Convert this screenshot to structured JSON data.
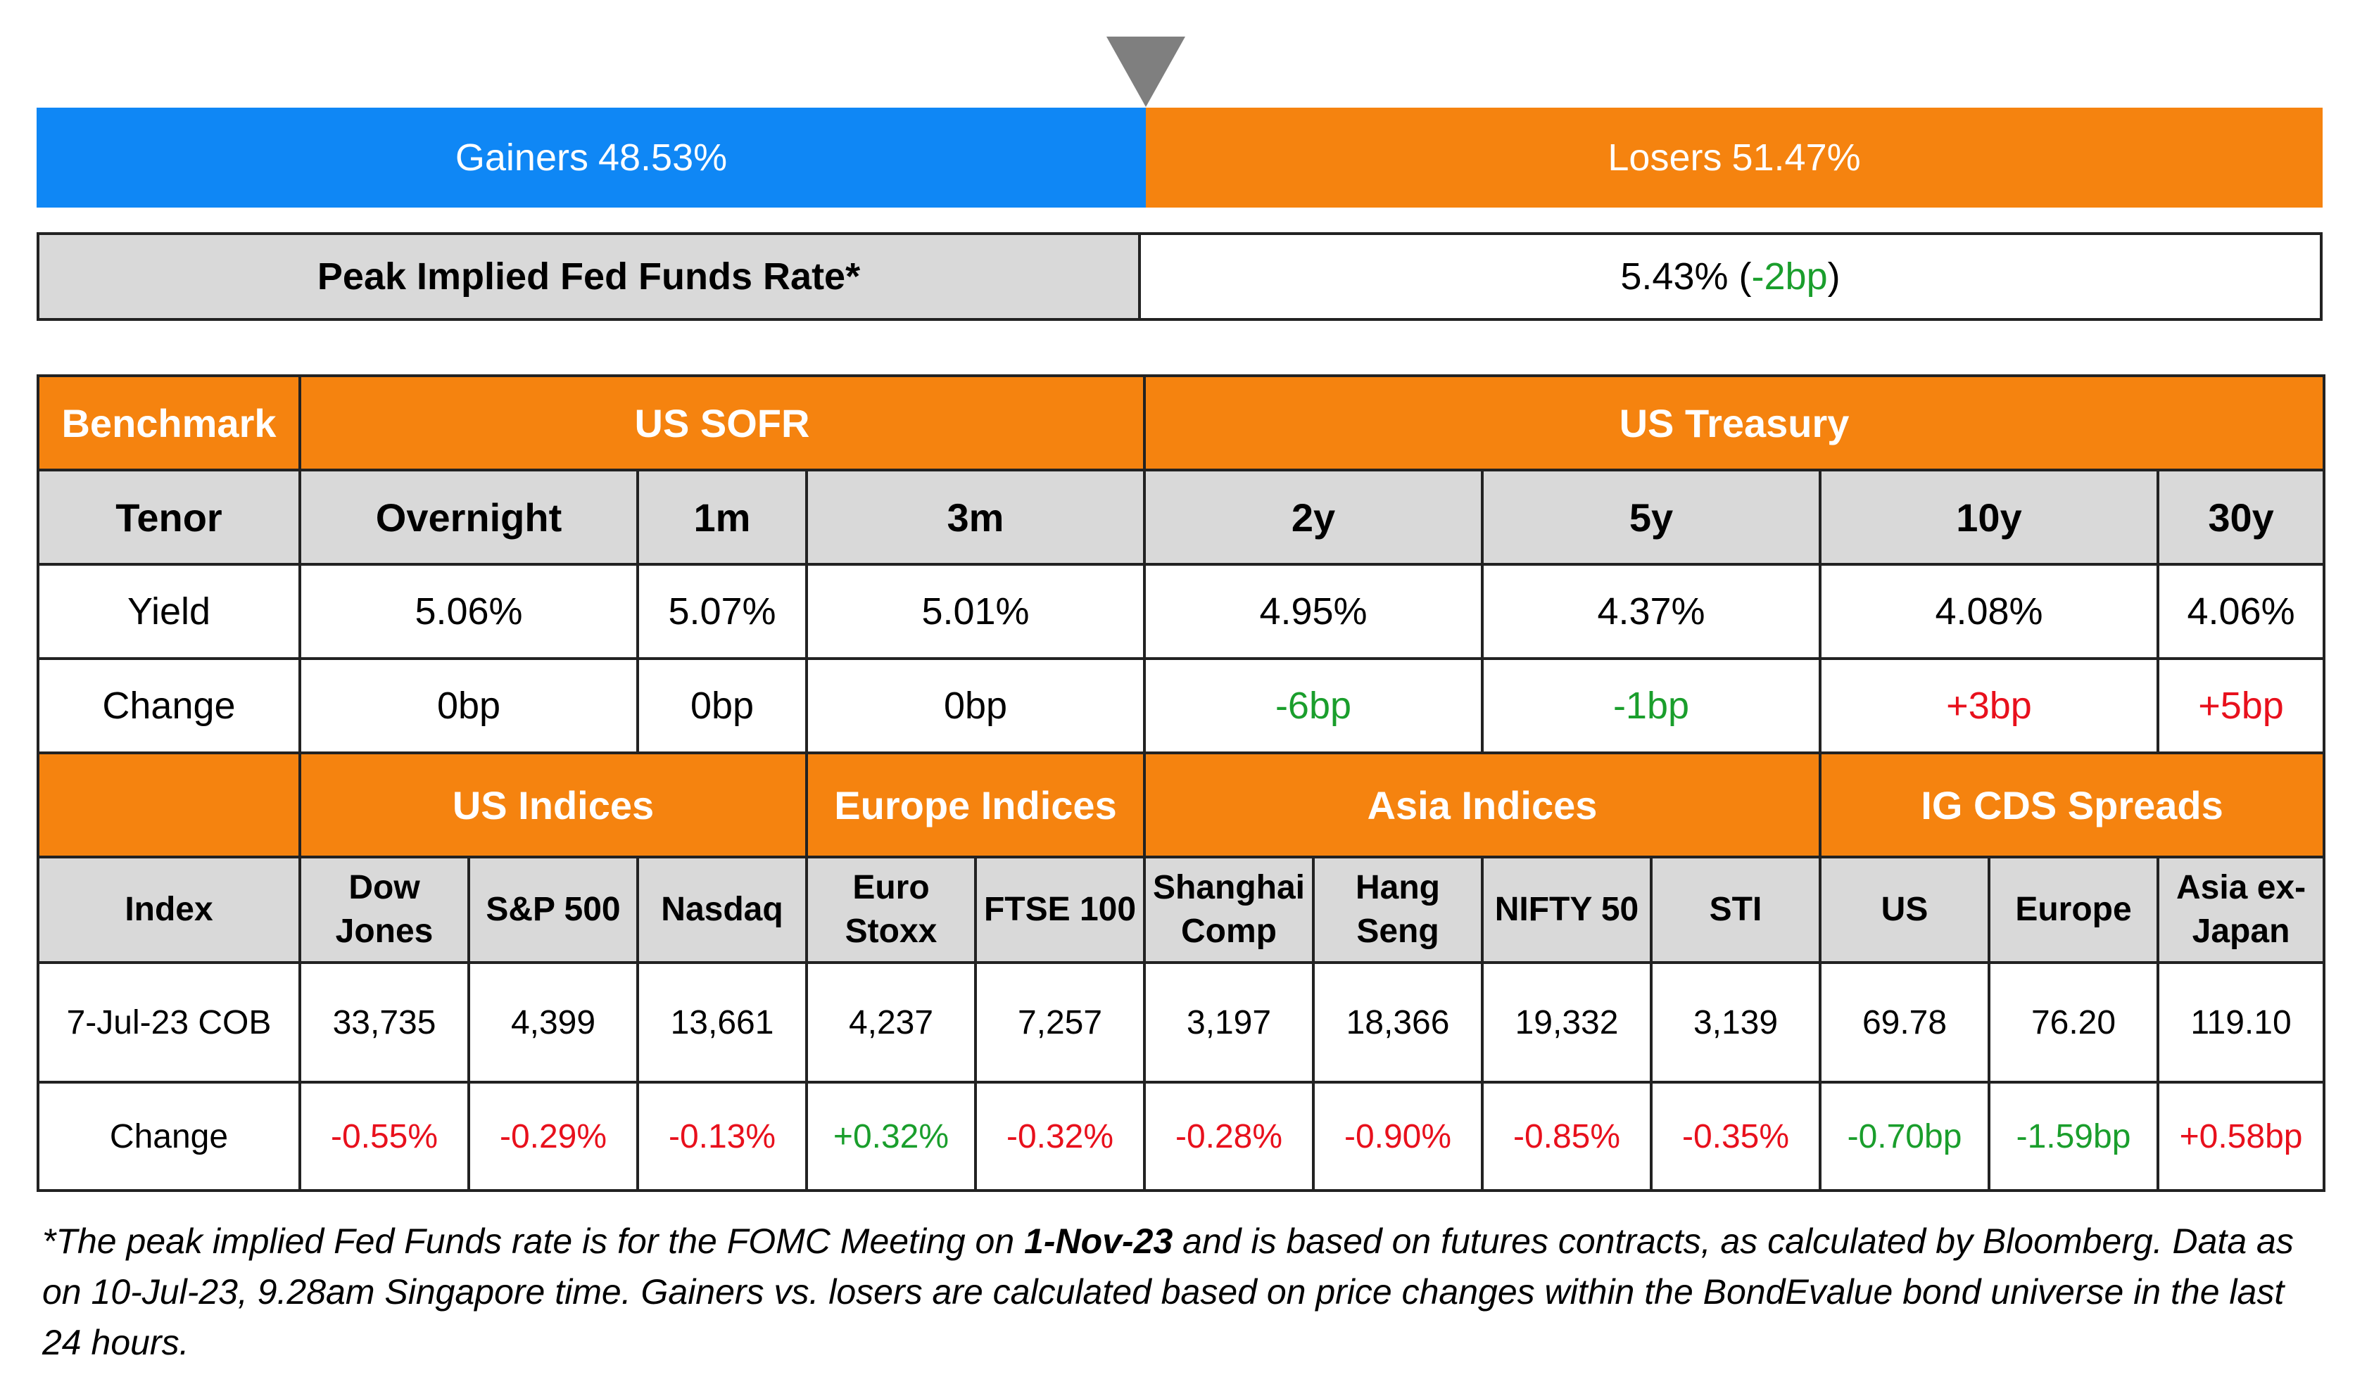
{
  "breadth": {
    "gainers_label": "Gainers",
    "gainers_value": "48.53%",
    "losers_label": "Losers",
    "losers_value": "51.47%",
    "gainers_share": 0.4853,
    "colors": {
      "gainers": "#0f87f5",
      "losers": "#f5830f",
      "pointer": "#7f7f7f"
    },
    "pointer_icon": "triangle-down-icon"
  },
  "peak_rate": {
    "label": "Peak Implied Fed Funds Rate*",
    "value": "5.43%",
    "open_paren": " (",
    "change": "-2bp",
    "close_paren": ")"
  },
  "rates": {
    "benchmark_label": "Benchmark",
    "sofr_label": "US SOFR",
    "treasury_label": "US Treasury",
    "tenor_label": "Tenor",
    "tenors": [
      "Overnight",
      "1m",
      "3m",
      "2y",
      "5y",
      "10y",
      "30y"
    ],
    "yield_label": "Yield",
    "yields": [
      "5.06%",
      "5.07%",
      "5.01%",
      "4.95%",
      "4.37%",
      "4.08%",
      "4.06%"
    ],
    "change_label": "Change",
    "changes": [
      "0bp",
      "0bp",
      "0bp",
      "-6bp",
      "-1bp",
      "+3bp",
      "+5bp"
    ]
  },
  "indices": {
    "groups": [
      "US Indices",
      "Europe Indices",
      "Asia Indices",
      "IG CDS Spreads"
    ],
    "index_label": "Index",
    "names": [
      "Dow\nJones",
      "S&P 500",
      "Nasdaq",
      "Euro\nStoxx",
      "FTSE 100",
      "Shanghai\nComp",
      "Hang\nSeng",
      "NIFTY 50",
      "STI",
      "US",
      "Europe",
      "Asia ex-\nJapan"
    ],
    "date_label": "7-Jul-23 COB",
    "values": [
      "33,735",
      "4,399",
      "13,661",
      "4,237",
      "7,257",
      "3,197",
      "18,366",
      "19,332",
      "3,139",
      "69.78",
      "76.20",
      "119.10"
    ],
    "change_label": "Change",
    "changes": [
      "-0.55%",
      "-0.29%",
      "-0.13%",
      "+0.32%",
      "-0.32%",
      "-0.28%",
      "-0.90%",
      "-0.85%",
      "-0.35%",
      "-0.70bp",
      "-1.59bp",
      "+0.58bp"
    ]
  },
  "footnote": {
    "part1": "*The peak implied Fed Funds rate is for the FOMC Meeting on ",
    "bold": "1-Nov-23",
    "part2": " and is based on futures contracts, as calculated by Bloomberg. Data as on 10-Jul-23, 9.28am Singapore time. Gainers vs. losers are calculated based on price changes within the BondEvalue bond universe in the last 24 hours."
  },
  "colors": {
    "header_orange": "#f5830f",
    "header_grey": "#d9d9d9",
    "positive": "#1a9e2c",
    "negative": "#e8101c"
  }
}
